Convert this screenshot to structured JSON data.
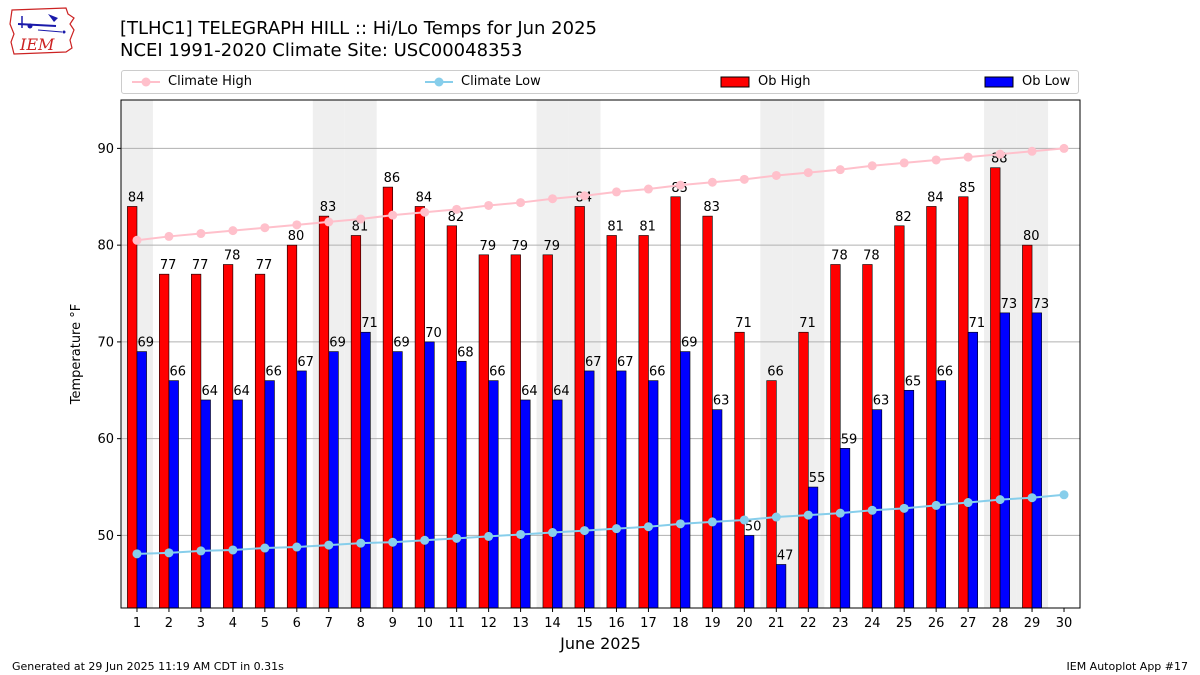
{
  "header": {
    "logo_text": "IEM",
    "title_line1": "[TLHC1] TELEGRAPH HILL :: Hi/Lo Temps for Jun 2025",
    "title_line2": "NCEI 1991-2020 Climate Site: USC00048353"
  },
  "legend": {
    "climate_high": "Climate High",
    "climate_low": "Climate Low",
    "ob_high": "Ob High",
    "ob_low": "Ob Low"
  },
  "footer": {
    "generated": "Generated at 29 Jun 2025 11:19 AM CDT in 0.31s",
    "app": "IEM Autoplot App #17"
  },
  "colors": {
    "climate_high": "#ffc0cb",
    "climate_low": "#87ceeb",
    "ob_high": "#ff0000",
    "ob_low": "#0000ff",
    "weekend_band": "#efefef",
    "grid": "#b0b0b0"
  },
  "chart_data": {
    "type": "bar",
    "xlabel": "June 2025",
    "ylabel": "Temperature °F",
    "x": [
      1,
      2,
      3,
      4,
      5,
      6,
      7,
      8,
      9,
      10,
      11,
      12,
      13,
      14,
      15,
      16,
      17,
      18,
      19,
      20,
      21,
      22,
      23,
      24,
      25,
      26,
      27,
      28,
      29,
      30
    ],
    "x_ticks": [
      "1",
      "2",
      "3",
      "4",
      "5",
      "6",
      "7",
      "8",
      "9",
      "10",
      "11",
      "12",
      "13",
      "14",
      "15",
      "16",
      "17",
      "18",
      "19",
      "20",
      "21",
      "22",
      "23",
      "24",
      "25",
      "26",
      "27",
      "28",
      "29",
      "30"
    ],
    "ylim": [
      42.5,
      95
    ],
    "y_ticks": [
      50,
      60,
      70,
      80,
      90
    ],
    "grid": "y",
    "weekend_days": [
      1,
      7,
      8,
      14,
      15,
      21,
      22,
      28,
      29
    ],
    "series": [
      {
        "name": "Ob High",
        "type": "bar",
        "values": [
          84,
          77,
          77,
          78,
          77,
          80,
          83,
          81,
          86,
          84,
          82,
          79,
          79,
          79,
          84,
          81,
          81,
          85,
          83,
          71,
          66,
          71,
          78,
          78,
          82,
          84,
          85,
          88,
          80,
          null
        ],
        "labels": [
          "84",
          "77",
          "77",
          "78",
          "77",
          "80",
          "83",
          "81",
          "86",
          "84",
          "82",
          "79",
          "79",
          "79",
          "84",
          "81",
          "81",
          "85",
          "83",
          "71",
          "66",
          "71",
          "78",
          "78",
          "82",
          "84",
          "85",
          "88",
          "80",
          ""
        ]
      },
      {
        "name": "Ob Low",
        "type": "bar",
        "values": [
          69,
          66,
          64,
          64,
          66,
          67,
          69,
          71,
          69,
          70,
          68,
          66,
          64,
          64,
          67,
          67,
          66,
          69,
          63,
          50,
          47,
          55,
          59,
          63,
          65,
          66,
          71,
          73,
          73,
          null
        ],
        "labels": [
          "69",
          "66",
          "64",
          "64",
          "66",
          "67",
          "69",
          "71",
          "69",
          "70",
          "68",
          "66",
          "64",
          "64",
          "67",
          "67",
          "66",
          "69",
          "63",
          "50",
          "47",
          "55",
          "59",
          "63",
          "65",
          "66",
          "71",
          "73",
          "73",
          ""
        ]
      },
      {
        "name": "Climate High",
        "type": "line",
        "values": [
          80.5,
          80.9,
          81.2,
          81.5,
          81.8,
          82.1,
          82.4,
          82.7,
          83.1,
          83.4,
          83.7,
          84.1,
          84.4,
          84.8,
          85.1,
          85.5,
          85.8,
          86.2,
          86.5,
          86.8,
          87.2,
          87.5,
          87.8,
          88.2,
          88.5,
          88.8,
          89.1,
          89.4,
          89.7,
          90.0
        ]
      },
      {
        "name": "Climate Low",
        "type": "line",
        "values": [
          48.1,
          48.2,
          48.4,
          48.5,
          48.7,
          48.8,
          49.0,
          49.2,
          49.3,
          49.5,
          49.7,
          49.9,
          50.1,
          50.3,
          50.5,
          50.7,
          50.9,
          51.2,
          51.4,
          51.6,
          51.9,
          52.1,
          52.3,
          52.6,
          52.8,
          53.1,
          53.4,
          53.7,
          53.9,
          54.2
        ]
      }
    ]
  }
}
